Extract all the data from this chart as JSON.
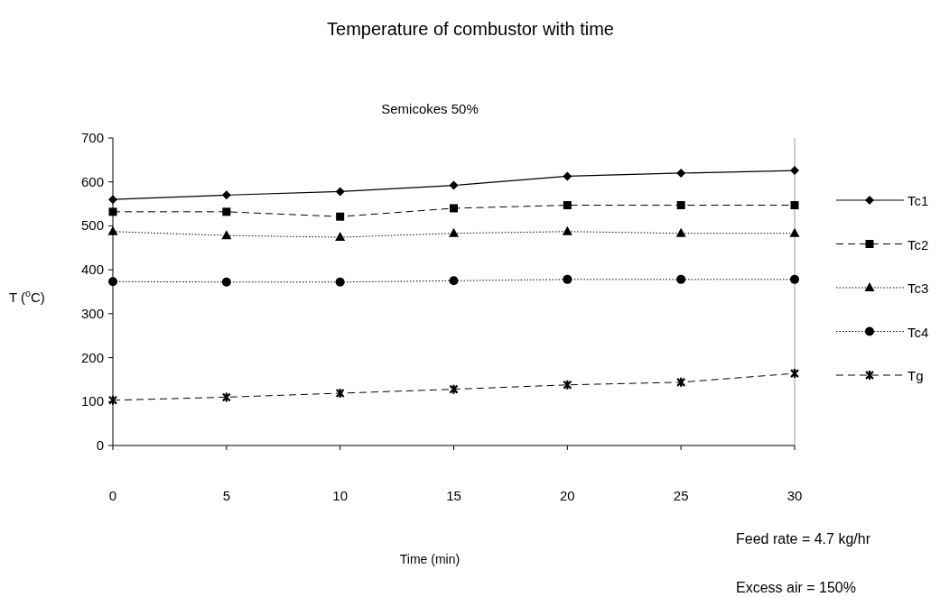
{
  "chart_data": {
    "type": "line",
    "title": "Temperature of combustor with time",
    "subtitle": "Semicokes 50%",
    "xlabel": "Time (min)",
    "ylabel": "T ($^{o}$C)",
    "annotations": [
      "Feed rate = 4.7 kg/hr",
      "Excess air = 150%"
    ],
    "x": [
      0,
      5,
      10,
      15,
      20,
      25,
      30
    ],
    "xlim": [
      0,
      30
    ],
    "xticks": [
      0,
      5,
      10,
      15,
      20,
      25,
      30
    ],
    "ylim": [
      0,
      700
    ],
    "yticks": [
      0,
      100,
      200,
      300,
      400,
      500,
      600,
      700
    ],
    "legend": "right",
    "grid": false,
    "series": [
      {
        "name": "Tc1",
        "color": "#000000",
        "marker": "diamond",
        "line_style": "solid",
        "values": [
          560,
          570,
          578,
          592,
          613,
          620,
          626
        ]
      },
      {
        "name": "Tc2",
        "color": "#000000",
        "marker": "square",
        "line_style": "dashed",
        "values": [
          532,
          532,
          521,
          540,
          547,
          547,
          547
        ]
      },
      {
        "name": "Tc3",
        "color": "#000000",
        "marker": "triangle",
        "line_style": "dotted",
        "values": [
          487,
          478,
          474,
          483,
          487,
          483,
          483
        ]
      },
      {
        "name": "Tc4",
        "color": "#000000",
        "marker": "circle",
        "line_style": "dotted",
        "values": [
          373,
          372,
          372,
          375,
          378,
          378,
          378
        ]
      },
      {
        "name": "Tg",
        "color": "#000000",
        "marker": "cross",
        "line_style": "dashed",
        "values": [
          103,
          110,
          119,
          128,
          138,
          144,
          164
        ]
      }
    ]
  }
}
